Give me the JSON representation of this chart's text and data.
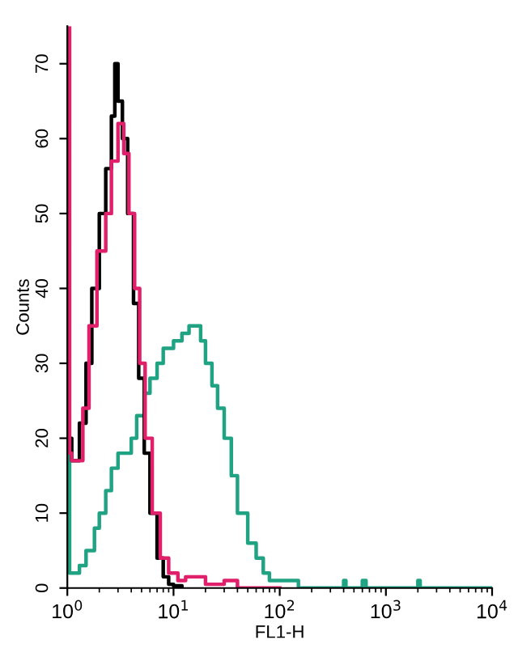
{
  "chart_data": {
    "type": "step",
    "xlabel": "FL1-H",
    "ylabel": "Counts",
    "log": "x",
    "grid": false,
    "legend": false,
    "xlim": [
      1,
      10000
    ],
    "xticks": [
      {
        "value": 1,
        "label": "10$^{0}$"
      },
      {
        "value": 10,
        "label": "10$^{1}$"
      },
      {
        "value": 100,
        "label": "10$^{2}$"
      },
      {
        "value": 1000,
        "label": "10$^{3}$"
      },
      {
        "value": 10000,
        "label": "10$^{4}$"
      }
    ],
    "ylim": [
      0,
      75
    ],
    "yticks": [
      0,
      10,
      20,
      30,
      40,
      50,
      60,
      70
    ],
    "series": [
      {
        "color": "#1fa383",
        "x": [
          1,
          1.05,
          1.3,
          1.5,
          1.8,
          2.0,
          2.3,
          2.6,
          3.0,
          3.5,
          4.0,
          4.5,
          5.3,
          6.0,
          7,
          8,
          10,
          12,
          14,
          16,
          18,
          20,
          23,
          26,
          30,
          35,
          40,
          50,
          60,
          70,
          80,
          100,
          150,
          400,
          420,
          600,
          650,
          2000,
          2100,
          10000
        ],
        "values": [
          18,
          2,
          3,
          5,
          8,
          10,
          13,
          16,
          18,
          18,
          20,
          23,
          26,
          28,
          30,
          32,
          33,
          34,
          35,
          35,
          33,
          30,
          27,
          24,
          20,
          15,
          10,
          6,
          4,
          2,
          1,
          1,
          0,
          1,
          0,
          1,
          0,
          1,
          0,
          0
        ]
      },
      {
        "color": "#000000",
        "x": [
          1,
          1.1,
          1.3,
          1.5,
          1.7,
          2.0,
          2.3,
          2.6,
          2.8,
          3.0,
          3.3,
          3.7,
          4.2,
          4.7,
          5.3,
          6,
          7,
          8,
          9,
          10,
          12
        ],
        "values": [
          20,
          17,
          22,
          30,
          40,
          50,
          56,
          63,
          70,
          65,
          60,
          50,
          38,
          28,
          18,
          10,
          4,
          1.5,
          0.5,
          0.3,
          0
        ]
      },
      {
        "color": "#e0206a",
        "x": [
          1,
          1.05,
          1.1,
          1.4,
          1.6,
          1.9,
          2.3,
          2.6,
          3.0,
          3.4,
          3.8,
          4.3,
          4.8,
          5.4,
          6.3,
          7.5,
          9,
          11,
          13,
          20,
          30,
          40,
          100
        ],
        "values": [
          75,
          18,
          17,
          24,
          35,
          45,
          50,
          57,
          62,
          58,
          50,
          40,
          30,
          20,
          10,
          4,
          2,
          1,
          1.5,
          0.5,
          1,
          0,
          0
        ]
      }
    ]
  }
}
